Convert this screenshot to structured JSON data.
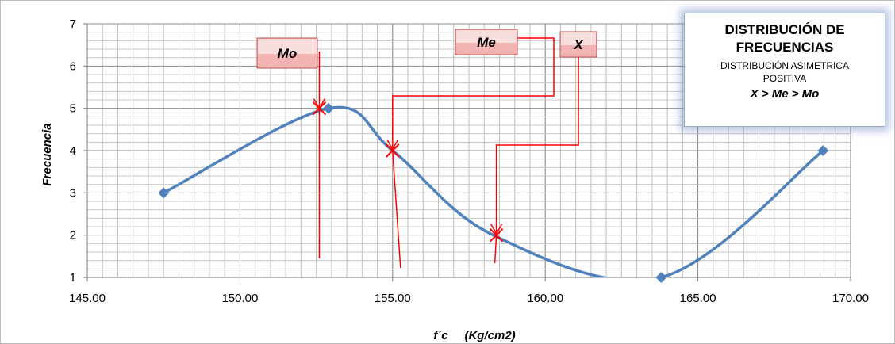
{
  "chart_data": {
    "type": "line",
    "title": "",
    "xlabel": "f´c     (Kg/cm2)",
    "ylabel": "Frecuencia",
    "xlim": [
      145,
      170
    ],
    "ylim": [
      1,
      7
    ],
    "x_ticks": [
      "145.00",
      "150.00",
      "155.00",
      "160.00",
      "165.00",
      "170.00"
    ],
    "y_ticks": [
      "1",
      "2",
      "3",
      "4",
      "5",
      "6",
      "7"
    ],
    "grid": true,
    "series": [
      {
        "color": "#4f81bd",
        "points": [
          {
            "x": 147.5,
            "y": 3
          },
          {
            "x": 152.9,
            "y": 5
          },
          {
            "x": 155.0,
            "y": 4
          },
          {
            "x": 158.3,
            "y": 2
          },
          {
            "x": 163.8,
            "y": 1
          },
          {
            "x": 169.1,
            "y": 4
          }
        ]
      }
    ],
    "annotations": [
      {
        "label": "Mo",
        "x": 152.6,
        "y": 5
      },
      {
        "label": "Me",
        "x": 155.0,
        "y": 4
      },
      {
        "label": "X",
        "x": 158.4,
        "y": 2
      }
    ],
    "annotation_color": "#ff0000",
    "legend": {
      "title": "DISTRIBUCIÓN DE FRECUENCIAS",
      "subtitle": "DISTRIBUCIÓN ASIMETRICA POSITIVA",
      "relation": "X >  Me > Mo",
      "placement": "top-right"
    }
  }
}
